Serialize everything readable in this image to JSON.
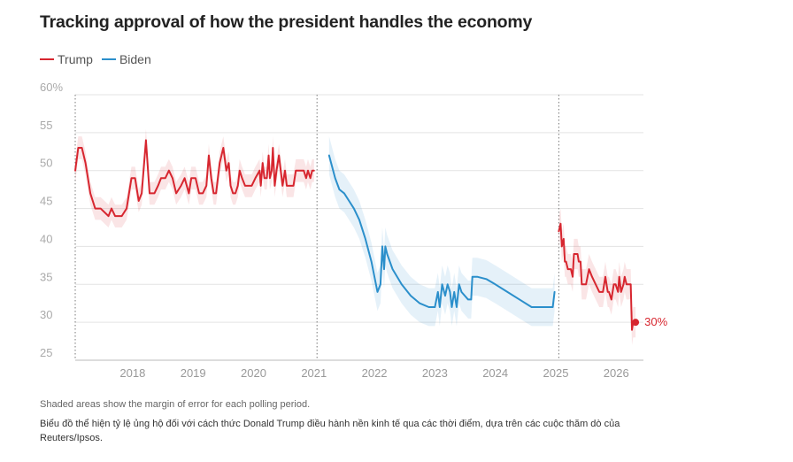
{
  "title": "Tracking approval of how the president handles the economy",
  "legend": [
    {
      "name": "Trump",
      "color": "#d7262f"
    },
    {
      "name": "Biden",
      "color": "#2b8fcb"
    }
  ],
  "note": "Shaded areas show the margin of error for each polling period.",
  "caption": "Biểu đồ thể hiện tỷ lệ ủng hộ đối với cách thức Donald Trump điều hành nền kinh tế qua các thời điểm, dựa trên các cuộc thăm dò của Reuters/Ipsos.",
  "chart_data": {
    "type": "line",
    "title": "Tracking approval of how the president handles the economy",
    "ylim": [
      25,
      60
    ],
    "y_ticks": [
      "60%",
      "55",
      "50",
      "45",
      "40",
      "35",
      "30",
      "25"
    ],
    "x_ticks": [
      "2018",
      "2019",
      "2020",
      "2021",
      "2022",
      "2023",
      "2024",
      "2025",
      "2026"
    ],
    "xlim": [
      2017.05,
      2026.45
    ],
    "grid": true,
    "legend_position": "top-left",
    "term_starts": [
      2017.05,
      2021.05,
      2025.05
    ],
    "end_label": "30%",
    "series": [
      {
        "name": "Trump",
        "color": "#d7262f",
        "margin": 1.5,
        "x": [
          2017.05,
          2017.1,
          2017.16,
          2017.22,
          2017.3,
          2017.38,
          2017.47,
          2017.6,
          2017.65,
          2017.71,
          2017.76,
          2017.82,
          2017.9,
          2017.98,
          2018.04,
          2018.1,
          2018.15,
          2018.22,
          2018.28,
          2018.31,
          2018.36,
          2018.42,
          2018.47,
          2018.5,
          2018.54,
          2018.6,
          2018.66,
          2018.72,
          2018.8,
          2018.86,
          2018.93,
          2018.97,
          2019.04,
          2019.1,
          2019.16,
          2019.22,
          2019.26,
          2019.3,
          2019.34,
          2019.38,
          2019.44,
          2019.5,
          2019.55,
          2019.59,
          2019.62,
          2019.66,
          2019.7,
          2019.74,
          2019.77,
          2019.81,
          2019.86,
          2019.92,
          2019.97,
          2020.03,
          2020.1,
          2020.12,
          2020.15,
          2020.18,
          2020.22,
          2020.25,
          2020.27,
          2020.3,
          2020.32,
          2020.35,
          2020.38,
          2020.42,
          2020.45,
          2020.48,
          2020.52,
          2020.55,
          2020.6,
          2020.63,
          2020.66,
          2020.7,
          2020.73,
          2020.76,
          2020.8,
          2020.83,
          2020.87,
          2020.9,
          2020.94,
          2020.97,
          2021.0
        ],
        "y": [
          50,
          53,
          53,
          51,
          47,
          45,
          45,
          44,
          45,
          44,
          44,
          44,
          45,
          49,
          49,
          46,
          47,
          54,
          47,
          47,
          47,
          48,
          49,
          49,
          49,
          50,
          49,
          47,
          48,
          49,
          47,
          49,
          49,
          47,
          47,
          48,
          52,
          49,
          47,
          47,
          51,
          53,
          50,
          51,
          48,
          47,
          47,
          48,
          50,
          49,
          48,
          48,
          48,
          49,
          50,
          48,
          51,
          49,
          49,
          52,
          49,
          50,
          53,
          48,
          50,
          52,
          50,
          48,
          50,
          48,
          48,
          48,
          48,
          50,
          50,
          50,
          50,
          50,
          49,
          50,
          49,
          50,
          50
        ]
      },
      {
        "name": "Biden",
        "color": "#2b8fcb",
        "margin": 2.5,
        "x": [
          2021.25,
          2021.35,
          2021.42,
          2021.5,
          2021.58,
          2021.66,
          2021.75,
          2021.85,
          2021.95,
          2022.05,
          2022.1,
          2022.13,
          2022.16,
          2022.18,
          2022.21,
          2022.3,
          2022.45,
          2022.6,
          2022.75,
          2022.9,
          2023.0,
          2023.05,
          2023.08,
          2023.12,
          2023.17,
          2023.21,
          2023.25,
          2023.28,
          2023.32,
          2023.36,
          2023.4,
          2023.44,
          2023.55,
          2023.6,
          2023.62,
          2023.7,
          2023.85,
          2024.0,
          2024.2,
          2024.4,
          2024.6,
          2024.8,
          2024.95,
          2024.98
        ],
        "y": [
          52,
          49,
          47.5,
          47,
          46,
          45,
          43.5,
          41,
          38,
          34,
          35,
          40,
          37,
          40,
          39,
          37,
          35,
          33.5,
          32.5,
          32,
          32,
          34,
          32,
          35,
          33.5,
          35,
          34,
          32,
          34,
          32,
          35,
          34,
          33,
          33,
          36,
          36,
          35.7,
          35,
          34,
          33,
          32,
          32,
          32,
          34
        ]
      },
      {
        "name": "Trump",
        "color": "#d7262f",
        "margin": 2,
        "x": [
          2025.05,
          2025.08,
          2025.1,
          2025.13,
          2025.15,
          2025.17,
          2025.2,
          2025.25,
          2025.28,
          2025.3,
          2025.33,
          2025.36,
          2025.38,
          2025.41,
          2025.43,
          2025.45,
          2025.5,
          2025.55,
          2025.6,
          2025.66,
          2025.72,
          2025.78,
          2025.82,
          2025.86,
          2025.88,
          2025.92,
          2025.96,
          2025.99,
          2026.03,
          2026.05,
          2026.08,
          2026.12,
          2026.14,
          2026.17,
          2026.2,
          2026.24,
          2026.26,
          2026.28,
          2026.32
        ],
        "y": [
          42,
          43,
          40,
          41,
          38,
          38,
          37,
          37,
          36,
          39,
          39,
          39,
          38,
          38,
          35,
          35,
          35,
          37,
          36,
          35,
          34,
          34,
          36,
          34,
          34,
          33,
          35,
          35,
          34,
          36,
          34,
          35,
          36,
          35,
          35,
          35,
          29,
          30,
          30
        ]
      }
    ]
  }
}
